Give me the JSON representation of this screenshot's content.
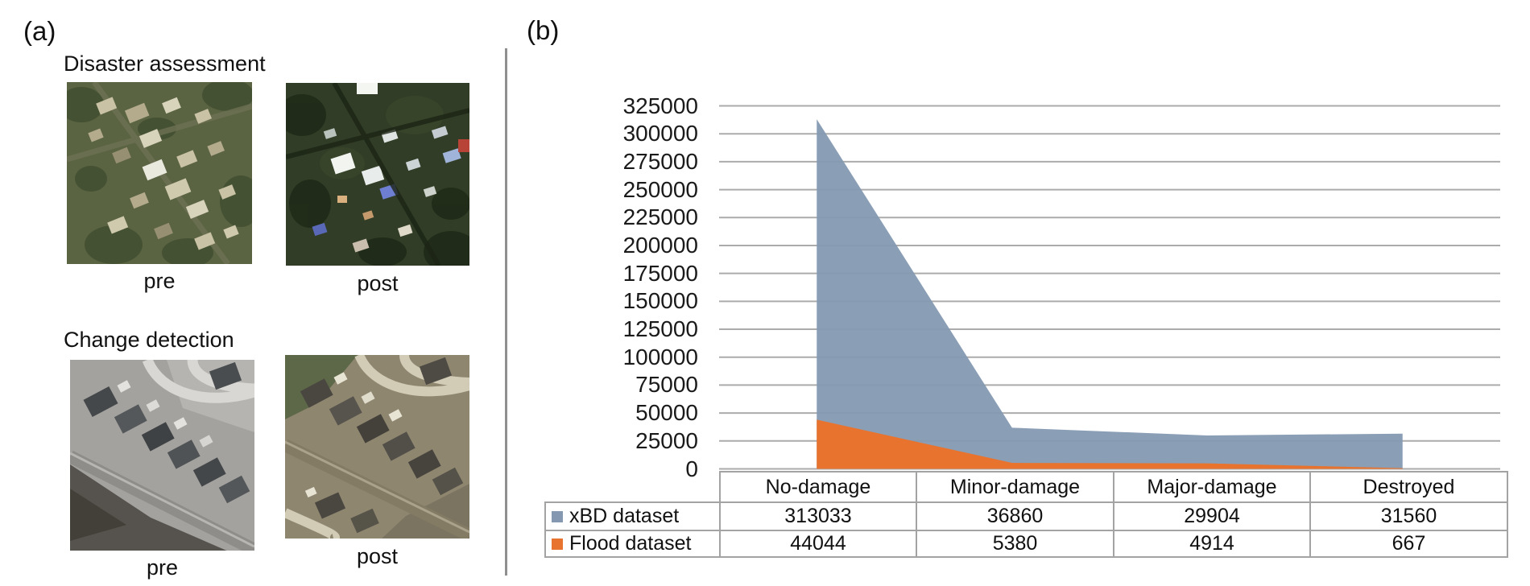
{
  "panel_a": {
    "label": "(a)",
    "sections": [
      {
        "title": "Disaster assessment",
        "pre_caption": "pre",
        "post_caption": "post"
      },
      {
        "title": "Change detection",
        "pre_caption": "pre",
        "post_caption": "post"
      }
    ]
  },
  "panel_b": {
    "label": "(b)"
  },
  "chart_data": {
    "type": "area",
    "categories": [
      "No-damage",
      "Minor-damage",
      "Major-damage",
      "Destroyed"
    ],
    "series": [
      {
        "name": "xBD dataset",
        "color": "#8499B1",
        "values": [
          313033,
          36860,
          29904,
          31560
        ]
      },
      {
        "name": "Flood dataset",
        "color": "#E8732E",
        "values": [
          44044,
          5380,
          4914,
          667
        ]
      }
    ],
    "title": "",
    "xlabel": "",
    "ylabel": "",
    "ylim": [
      0,
      325000
    ],
    "ytick_step": 25000,
    "grid": true,
    "gridline_color": "#ababab",
    "legend_position": "table-left",
    "table_shown": true
  }
}
